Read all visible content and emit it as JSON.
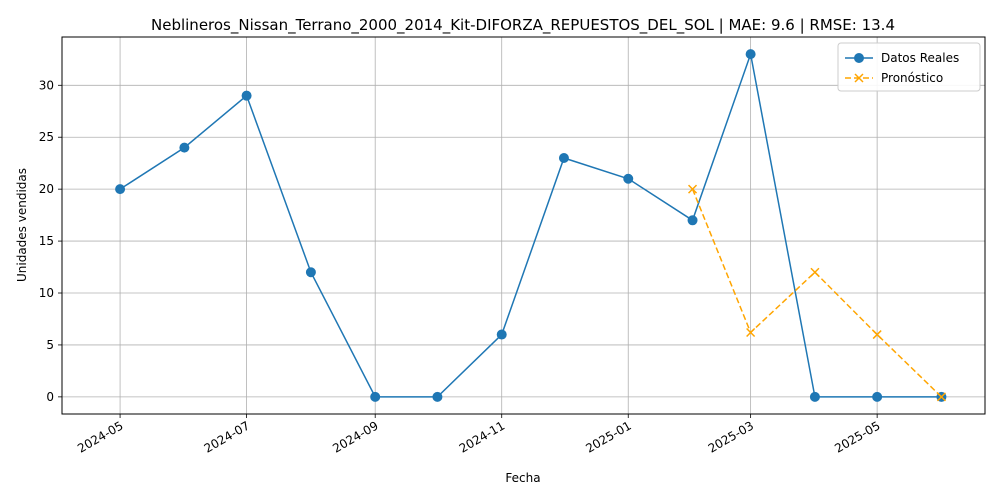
{
  "chart_data": {
    "type": "line",
    "title": "Neblineros_Nissan_Terrano_2000_2014_Kit-DIFORZA_REPUESTOS_DEL_SOL | MAE: 9.6 | RMSE: 13.4",
    "xlabel": "Fecha",
    "ylabel": "Unidades vendidas",
    "xlim": [
      "2024-04-03",
      "2025-06-22"
    ],
    "ylim": [
      -1.65,
      34.65
    ],
    "x_ticks": [
      "2024-05-01",
      "2024-07-01",
      "2024-09-01",
      "2024-11-01",
      "2025-01-01",
      "2025-03-01",
      "2025-05-01"
    ],
    "x_tick_labels": [
      "2024-05",
      "2024-07",
      "2024-09",
      "2024-11",
      "2025-01",
      "2025-03",
      "2025-05"
    ],
    "y_ticks": [
      0,
      5,
      10,
      15,
      20,
      25,
      30
    ],
    "grid": true,
    "legend_position": "top-right",
    "series": [
      {
        "name": "Datos Reales",
        "color": "#1f77b4",
        "line_style": "solid",
        "marker": "circle",
        "x": [
          "2024-05-01",
          "2024-06-01",
          "2024-07-01",
          "2024-08-01",
          "2024-09-01",
          "2024-10-01",
          "2024-11-01",
          "2024-12-01",
          "2025-01-01",
          "2025-02-01",
          "2025-03-01",
          "2025-04-01",
          "2025-05-01",
          "2025-06-01"
        ],
        "values": [
          20,
          24,
          29,
          12,
          0,
          0,
          6,
          23,
          21,
          17,
          33,
          0,
          0,
          0
        ]
      },
      {
        "name": "Pronóstico",
        "color": "#ffa500",
        "line_style": "dashed",
        "marker": "x",
        "x": [
          "2025-02-01",
          "2025-03-01",
          "2025-04-01",
          "2025-05-01",
          "2025-06-01"
        ],
        "values": [
          20,
          6.2,
          12,
          6,
          0
        ]
      }
    ]
  }
}
